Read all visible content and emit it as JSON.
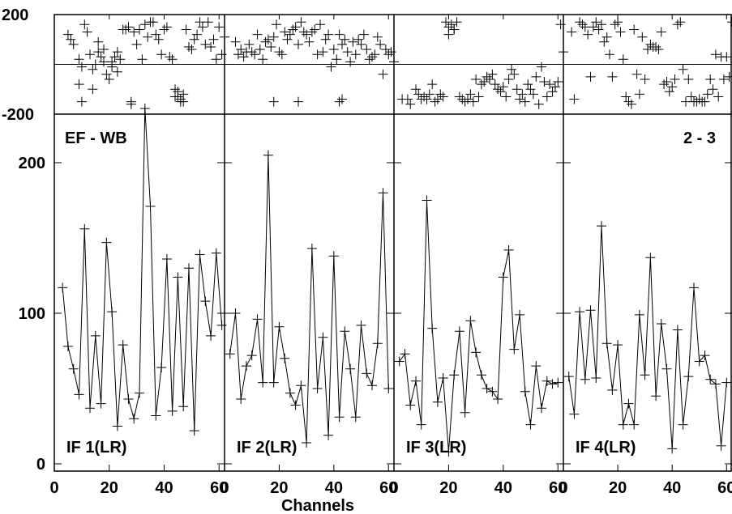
{
  "chart_data": {
    "type": "scatter",
    "title": "",
    "xlabel": "Channels",
    "top_label": "EF - WB",
    "baseline_label": "2 - 3",
    "top_panel": {
      "ylim": [
        -200,
        200
      ],
      "yticks": [
        {
          "value": 200,
          "label": "200"
        },
        {
          "value": -200,
          "label": "-200"
        }
      ]
    },
    "bottom_panel": {
      "ylim": [
        0,
        220
      ],
      "yticks": [
        {
          "value": 200,
          "label": "200"
        },
        {
          "value": 100,
          "label": "100"
        },
        {
          "value": 0,
          "label": "0"
        }
      ]
    },
    "panels": [
      {
        "label": "IF 1(LR)",
        "xlim": [
          0,
          62
        ],
        "xticks": [
          "0",
          "20",
          "40",
          "60"
        ],
        "phase_x": [
          5,
          6,
          7,
          9,
          10,
          11,
          12,
          13,
          14,
          15,
          16,
          17,
          18,
          19,
          20,
          21,
          22,
          23,
          24,
          25,
          26,
          27,
          28,
          29,
          30,
          31,
          32,
          33,
          34,
          35,
          36,
          37,
          38,
          39,
          40,
          41,
          42,
          43,
          44,
          45,
          46,
          47,
          48,
          49,
          50,
          51,
          52,
          53,
          54,
          55,
          56,
          57,
          58,
          59,
          60,
          61,
          62,
          9,
          10,
          14,
          16,
          18,
          21,
          23,
          28,
          44,
          45,
          46,
          47
        ],
        "phase": [
          120,
          100,
          80,
          20,
          -10,
          160,
          130,
          40,
          -20,
          0,
          50,
          30,
          10,
          -40,
          -60,
          -10,
          30,
          50,
          20,
          140,
          140,
          150,
          -160,
          130,
          80,
          140,
          20,
          160,
          110,
          170,
          170,
          120,
          100,
          40,
          140,
          150,
          30,
          20,
          -100,
          -130,
          -150,
          -120,
          140,
          70,
          60,
          100,
          120,
          170,
          150,
          80,
          170,
          70,
          100,
          20,
          150,
          40,
          110,
          -80,
          -150,
          -100,
          90,
          60,
          10,
          -30,
          -150,
          -130,
          -110,
          -140,
          -150
        ],
        "amp_x": [
          3,
          5,
          7,
          9,
          11,
          13,
          15,
          17,
          19,
          21,
          23,
          25,
          27,
          29,
          31,
          33,
          35,
          37,
          39,
          41,
          43,
          45,
          47,
          49,
          51,
          53,
          55,
          57,
          59,
          61
        ],
        "amp": [
          117,
          78,
          63,
          46,
          156,
          37,
          85,
          40,
          147,
          101,
          25,
          79,
          43,
          30,
          47,
          236,
          171,
          32,
          64,
          136,
          35,
          124,
          38,
          130,
          22,
          139,
          108,
          85,
          140,
          92
        ]
      },
      {
        "label": "IF 2(LR)",
        "xlim": [
          0,
          62
        ],
        "xticks": [
          "0",
          "20",
          "40",
          "60"
        ],
        "phase_x": [
          4,
          5,
          6,
          7,
          8,
          9,
          10,
          11,
          12,
          13,
          14,
          15,
          16,
          17,
          18,
          19,
          20,
          21,
          22,
          23,
          24,
          25,
          26,
          27,
          28,
          29,
          30,
          31,
          32,
          33,
          34,
          35,
          36,
          37,
          38,
          39,
          40,
          41,
          42,
          43,
          44,
          45,
          46,
          47,
          48,
          49,
          50,
          51,
          52,
          53,
          54,
          55,
          56,
          57,
          58,
          59,
          60,
          61,
          62,
          18,
          27,
          42,
          43
        ],
        "phase": [
          90,
          40,
          60,
          30,
          50,
          80,
          50,
          40,
          120,
          60,
          20,
          90,
          100,
          70,
          110,
          160,
          50,
          40,
          130,
          100,
          120,
          140,
          150,
          80,
          170,
          130,
          120,
          90,
          130,
          140,
          40,
          160,
          50,
          100,
          120,
          -10,
          60,
          20,
          120,
          80,
          100,
          50,
          10,
          90,
          40,
          100,
          80,
          120,
          60,
          20,
          30,
          40,
          110,
          80,
          -40,
          60,
          40,
          50,
          10,
          -150,
          -150,
          -150,
          -140
        ],
        "amp_x": [
          2,
          4,
          6,
          8,
          10,
          12,
          14,
          16,
          18,
          20,
          22,
          24,
          26,
          28,
          30,
          32,
          34,
          36,
          38,
          40,
          42,
          44,
          46,
          48,
          50,
          52,
          54,
          56,
          58,
          60
        ],
        "amp": [
          73,
          100,
          43,
          65,
          72,
          96,
          54,
          205,
          54,
          91,
          70,
          47,
          39,
          52,
          14,
          143,
          50,
          84,
          19,
          138,
          31,
          88,
          63,
          31,
          92,
          60,
          52,
          80,
          180,
          50
        ]
      },
      {
        "label": "IF 3(LR)",
        "xlim": [
          0,
          62
        ],
        "xticks": [
          "0",
          "20",
          "40",
          "60"
        ],
        "phase_x": [
          3,
          5,
          6,
          8,
          9,
          10,
          11,
          12,
          13,
          14,
          15,
          16,
          17,
          18,
          19,
          20,
          21,
          22,
          23,
          24,
          25,
          26,
          27,
          28,
          29,
          30,
          31,
          32,
          33,
          34,
          35,
          36,
          37,
          38,
          39,
          40,
          41,
          42,
          43,
          44,
          45,
          46,
          47,
          48,
          49,
          50,
          51,
          52,
          53,
          54,
          55,
          56,
          57,
          58,
          59,
          60,
          61,
          62,
          20,
          22
        ],
        "phase": [
          -140,
          -140,
          -160,
          -100,
          -120,
          -140,
          -130,
          -140,
          -120,
          -80,
          -150,
          -140,
          -120,
          -130,
          170,
          150,
          160,
          140,
          170,
          -130,
          -140,
          -150,
          -140,
          -120,
          -150,
          -60,
          -130,
          -80,
          -70,
          -50,
          -60,
          -40,
          -80,
          -100,
          -110,
          -90,
          -130,
          -60,
          -20,
          -40,
          -100,
          -140,
          -120,
          -150,
          -80,
          -100,
          -120,
          -50,
          -160,
          -10,
          -70,
          -130,
          -80,
          -110,
          -90,
          -70,
          160,
          50,
          120,
          140
        ],
        "amp_x": [
          2,
          4,
          6,
          8,
          10,
          12,
          14,
          16,
          18,
          20,
          22,
          24,
          26,
          28,
          30,
          32,
          34,
          36,
          38,
          40,
          42,
          44,
          46,
          48,
          50,
          52,
          54,
          56,
          58,
          60
        ],
        "amp": [
          68,
          73,
          39,
          55,
          26,
          175,
          90,
          41,
          57,
          8,
          59,
          88,
          34,
          95,
          74,
          59,
          50,
          48,
          43,
          124,
          142,
          76,
          99,
          48,
          26,
          65,
          37,
          55,
          53,
          54
        ]
      },
      {
        "label": "IF 4(LR)",
        "xlim": [
          0,
          62
        ],
        "xticks": [
          "0",
          "20",
          "40",
          "60"
        ],
        "phase_x": [
          3,
          4,
          6,
          7,
          8,
          9,
          10,
          11,
          12,
          13,
          14,
          15,
          16,
          17,
          18,
          19,
          20,
          21,
          22,
          23,
          24,
          25,
          26,
          27,
          28,
          29,
          30,
          31,
          32,
          33,
          34,
          35,
          36,
          37,
          38,
          39,
          40,
          41,
          42,
          43,
          44,
          45,
          46,
          47,
          48,
          49,
          50,
          51,
          52,
          53,
          54,
          55,
          56,
          57,
          58,
          59,
          60,
          61,
          62
        ],
        "phase": [
          130,
          -140,
          170,
          160,
          150,
          120,
          -50,
          150,
          170,
          140,
          160,
          90,
          110,
          40,
          -50,
          160,
          170,
          130,
          20,
          -130,
          -150,
          -160,
          140,
          -40,
          -120,
          110,
          -60,
          60,
          80,
          70,
          70,
          60,
          130,
          -80,
          -70,
          -110,
          -90,
          -60,
          160,
          170,
          -20,
          -150,
          -60,
          -130,
          -150,
          -150,
          -140,
          -150,
          -150,
          -120,
          -60,
          -100,
          40,
          -130,
          30,
          -60,
          30,
          -50,
          170
        ],
        "amp_x": [
          2,
          4,
          6,
          8,
          10,
          12,
          14,
          16,
          18,
          20,
          22,
          24,
          26,
          28,
          30,
          32,
          34,
          36,
          38,
          40,
          42,
          44,
          46,
          48,
          50,
          52,
          54,
          56,
          58,
          60
        ],
        "amp": [
          58,
          33,
          101,
          56,
          102,
          57,
          158,
          80,
          49,
          79,
          26,
          40,
          26,
          99,
          59,
          137,
          45,
          93,
          63,
          10,
          89,
          26,
          58,
          117,
          68,
          72,
          56,
          53,
          12,
          54
        ]
      }
    ]
  }
}
